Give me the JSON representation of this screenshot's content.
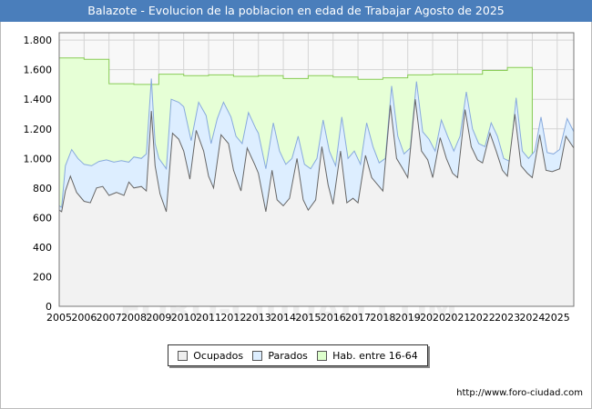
{
  "title": "Balazote - Evolucion de la poblacion en edad de Trabajar Agosto de 2025",
  "source": "http://www.foro-ciudad.com",
  "watermark": "FORO-CIUDAD.COM",
  "colors": {
    "title_bg": "#4a7ebb",
    "hab_fill": "#e6ffd6",
    "hab_line": "#88cc55",
    "parados_fill": "#ddeeff",
    "parados_line": "#88aadd",
    "ocupados_fill": "#f2f2f2",
    "ocupados_line": "#666666",
    "plot_bg": "#f8f8f8",
    "grid": "#d4d4d4"
  },
  "legend": [
    {
      "key": "ocupados",
      "label": "Ocupados",
      "color": "#eeeeee"
    },
    {
      "key": "parados",
      "label": "Parados",
      "color": "#ddeeff"
    },
    {
      "key": "hab",
      "label": "Hab. entre 16-64",
      "color": "#ddffcc"
    }
  ],
  "chart_data": {
    "type": "area",
    "title": "Balazote - Evolucion de la poblacion en edad de Trabajar Agosto de 2025",
    "xlim": [
      2005.0,
      2025.667
    ],
    "ylim": [
      0,
      1850
    ],
    "grid": true,
    "legend_position": "bottom",
    "xticks": [
      2005,
      2006,
      2007,
      2008,
      2009,
      2010,
      2011,
      2012,
      2013,
      2014,
      2015,
      2016,
      2017,
      2018,
      2019,
      2020,
      2021,
      2022,
      2023,
      2024,
      2025
    ],
    "yticks": [
      0,
      200,
      400,
      600,
      800,
      1000,
      1200,
      1400,
      1600,
      1800
    ],
    "ytick_labels": [
      "0",
      "200",
      "400",
      "600",
      "800",
      "1.000",
      "1.200",
      "1.400",
      "1.600",
      "1.800"
    ],
    "hab_16_64": {
      "name": "Hab. entre 16-64",
      "years": [
        2005,
        2006,
        2007,
        2008,
        2009,
        2010,
        2011,
        2012,
        2013,
        2014,
        2015,
        2016,
        2017,
        2018,
        2019,
        2020,
        2021,
        2022,
        2023,
        2024
      ],
      "values": [
        1680,
        1670,
        1505,
        1500,
        1570,
        1560,
        1565,
        1555,
        1560,
        1540,
        1560,
        1550,
        1535,
        1545,
        1565,
        1570,
        1570,
        1595,
        1615,
        1020
      ]
    },
    "series": [
      {
        "name": "Parados",
        "anchors": [
          [
            2005.0,
            680
          ],
          [
            2005.1,
            670
          ],
          [
            2005.25,
            950
          ],
          [
            2005.5,
            1060
          ],
          [
            2005.75,
            1000
          ],
          [
            2006.0,
            960
          ],
          [
            2006.3,
            950
          ],
          [
            2006.6,
            980
          ],
          [
            2006.9,
            990
          ],
          [
            2007.2,
            975
          ],
          [
            2007.5,
            985
          ],
          [
            2007.8,
            975
          ],
          [
            2008.0,
            1010
          ],
          [
            2008.3,
            1000
          ],
          [
            2008.5,
            1030
          ],
          [
            2008.7,
            1540
          ],
          [
            2008.85,
            1100
          ],
          [
            2009.0,
            1000
          ],
          [
            2009.3,
            930
          ],
          [
            2009.5,
            1400
          ],
          [
            2009.8,
            1380
          ],
          [
            2010.0,
            1350
          ],
          [
            2010.3,
            1120
          ],
          [
            2010.6,
            1380
          ],
          [
            2010.9,
            1290
          ],
          [
            2011.1,
            1100
          ],
          [
            2011.35,
            1270
          ],
          [
            2011.6,
            1380
          ],
          [
            2011.9,
            1280
          ],
          [
            2012.1,
            1150
          ],
          [
            2012.35,
            1100
          ],
          [
            2012.6,
            1310
          ],
          [
            2012.9,
            1200
          ],
          [
            2013.0,
            1170
          ],
          [
            2013.3,
            930
          ],
          [
            2013.6,
            1240
          ],
          [
            2013.85,
            1050
          ],
          [
            2014.1,
            960
          ],
          [
            2014.35,
            1000
          ],
          [
            2014.6,
            1150
          ],
          [
            2014.85,
            960
          ],
          [
            2015.1,
            930
          ],
          [
            2015.35,
            1000
          ],
          [
            2015.6,
            1260
          ],
          [
            2015.85,
            1050
          ],
          [
            2016.1,
            950
          ],
          [
            2016.35,
            1280
          ],
          [
            2016.6,
            1000
          ],
          [
            2016.85,
            1050
          ],
          [
            2017.1,
            960
          ],
          [
            2017.35,
            1240
          ],
          [
            2017.6,
            1080
          ],
          [
            2017.85,
            970
          ],
          [
            2018.1,
            1000
          ],
          [
            2018.35,
            1490
          ],
          [
            2018.6,
            1150
          ],
          [
            2018.85,
            1030
          ],
          [
            2019.1,
            1070
          ],
          [
            2019.35,
            1520
          ],
          [
            2019.6,
            1180
          ],
          [
            2019.85,
            1130
          ],
          [
            2020.1,
            1050
          ],
          [
            2020.35,
            1260
          ],
          [
            2020.6,
            1150
          ],
          [
            2020.85,
            1050
          ],
          [
            2021.1,
            1150
          ],
          [
            2021.35,
            1450
          ],
          [
            2021.6,
            1200
          ],
          [
            2021.85,
            1100
          ],
          [
            2022.1,
            1080
          ],
          [
            2022.35,
            1240
          ],
          [
            2022.6,
            1150
          ],
          [
            2022.85,
            1000
          ],
          [
            2023.1,
            980
          ],
          [
            2023.35,
            1410
          ],
          [
            2023.6,
            1050
          ],
          [
            2023.85,
            1000
          ],
          [
            2024.1,
            1050
          ],
          [
            2024.35,
            1280
          ],
          [
            2024.6,
            1040
          ],
          [
            2024.85,
            1030
          ],
          [
            2025.1,
            1060
          ],
          [
            2025.4,
            1270
          ],
          [
            2025.667,
            1180
          ]
        ]
      },
      {
        "name": "Ocupados",
        "anchors": [
          [
            2005.0,
            650
          ],
          [
            2005.1,
            640
          ],
          [
            2005.25,
            780
          ],
          [
            2005.45,
            880
          ],
          [
            2005.7,
            770
          ],
          [
            2006.0,
            710
          ],
          [
            2006.25,
            700
          ],
          [
            2006.5,
            800
          ],
          [
            2006.75,
            810
          ],
          [
            2007.0,
            750
          ],
          [
            2007.3,
            770
          ],
          [
            2007.6,
            750
          ],
          [
            2007.8,
            840
          ],
          [
            2008.0,
            800
          ],
          [
            2008.3,
            810
          ],
          [
            2008.5,
            780
          ],
          [
            2008.7,
            1320
          ],
          [
            2008.85,
            950
          ],
          [
            2009.05,
            760
          ],
          [
            2009.3,
            640
          ],
          [
            2009.55,
            1170
          ],
          [
            2009.8,
            1130
          ],
          [
            2010.0,
            1050
          ],
          [
            2010.25,
            860
          ],
          [
            2010.5,
            1190
          ],
          [
            2010.8,
            1050
          ],
          [
            2011.0,
            880
          ],
          [
            2011.2,
            800
          ],
          [
            2011.5,
            1160
          ],
          [
            2011.8,
            1100
          ],
          [
            2012.0,
            920
          ],
          [
            2012.3,
            780
          ],
          [
            2012.55,
            1070
          ],
          [
            2012.85,
            960
          ],
          [
            2013.0,
            900
          ],
          [
            2013.3,
            640
          ],
          [
            2013.55,
            920
          ],
          [
            2013.75,
            720
          ],
          [
            2014.0,
            680
          ],
          [
            2014.25,
            730
          ],
          [
            2014.55,
            1000
          ],
          [
            2014.8,
            720
          ],
          [
            2015.0,
            650
          ],
          [
            2015.3,
            720
          ],
          [
            2015.55,
            1080
          ],
          [
            2015.8,
            820
          ],
          [
            2016.0,
            690
          ],
          [
            2016.3,
            1050
          ],
          [
            2016.55,
            700
          ],
          [
            2016.8,
            730
          ],
          [
            2017.0,
            700
          ],
          [
            2017.3,
            1020
          ],
          [
            2017.55,
            870
          ],
          [
            2017.8,
            820
          ],
          [
            2018.0,
            780
          ],
          [
            2018.3,
            1360
          ],
          [
            2018.55,
            1000
          ],
          [
            2018.8,
            930
          ],
          [
            2019.0,
            870
          ],
          [
            2019.3,
            1400
          ],
          [
            2019.55,
            1050
          ],
          [
            2019.8,
            990
          ],
          [
            2020.0,
            870
          ],
          [
            2020.3,
            1140
          ],
          [
            2020.55,
            1000
          ],
          [
            2020.8,
            900
          ],
          [
            2021.0,
            870
          ],
          [
            2021.3,
            1330
          ],
          [
            2021.55,
            1080
          ],
          [
            2021.8,
            990
          ],
          [
            2022.0,
            970
          ],
          [
            2022.3,
            1170
          ],
          [
            2022.55,
            1050
          ],
          [
            2022.8,
            920
          ],
          [
            2023.0,
            880
          ],
          [
            2023.3,
            1300
          ],
          [
            2023.55,
            950
          ],
          [
            2023.8,
            900
          ],
          [
            2024.0,
            870
          ],
          [
            2024.3,
            1160
          ],
          [
            2024.55,
            920
          ],
          [
            2024.8,
            910
          ],
          [
            2025.1,
            930
          ],
          [
            2025.35,
            1150
          ],
          [
            2025.667,
            1070
          ]
        ]
      }
    ]
  }
}
